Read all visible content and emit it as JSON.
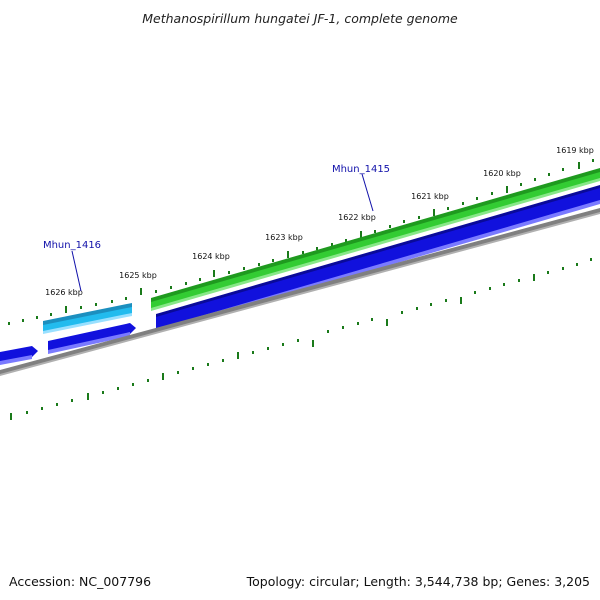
{
  "title": "Methanospirillum hungatei JF-1, complete genome",
  "footer": {
    "accession": "Accession: NC_007796",
    "summary": "Topology: circular; Length: 3,544,738 bp; Genes: 3,205"
  },
  "ticks": [
    "1619 kbp",
    "1620 kbp",
    "1621 kbp",
    "1622 kbp",
    "1623 kbp",
    "1624 kbp",
    "1625 kbp",
    "1626 kbp"
  ],
  "genes": [
    {
      "id": "Mhun_1415",
      "color": "#33cc33"
    },
    {
      "id": "Mhun_1416",
      "color": "#22bbee"
    }
  ],
  "colors": {
    "forward_gene": "#33cc33",
    "forward_gene_alt": "#22bbee",
    "cds": "#1111dd",
    "backbone": "#808080",
    "tick": "#1a7a1a",
    "label_link": "#1111aa"
  }
}
